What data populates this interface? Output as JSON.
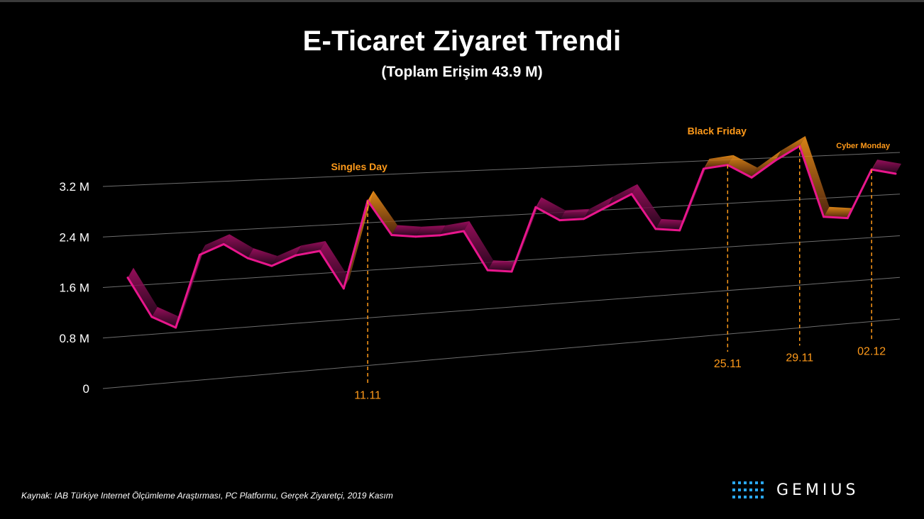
{
  "header": {
    "title": "E-Ticaret Ziyaret Trendi",
    "subtitle": "(Toplam Erişim 43.9 M)"
  },
  "footer": {
    "source": "Kaynak: IAB Türkiye Internet Ölçümleme Araştırması, PC Platformu, Gerçek Ziyaretçi, 2019 Kasım",
    "brand": "GEMIUS"
  },
  "colors": {
    "background": "#000000",
    "series": "#e8168c",
    "highlight": "#ff9a1a",
    "grid": "#8a8a8a"
  },
  "chart_data": {
    "type": "area",
    "title": "E-Ticaret Ziyaret Trendi",
    "subtitle": "(Toplam Erişim 43.9 M)",
    "ylim": [
      0,
      3.2
    ],
    "yticks": [
      "0",
      "0.8 M",
      "1.6 M",
      "2.4 M",
      "3.2 M"
    ],
    "unit": "M",
    "grid": true,
    "series": [
      {
        "values": [
          1.9,
          1.25,
          1.05,
          2.2,
          2.35,
          2.1,
          1.95,
          2.1,
          2.15,
          1.5,
          2.95,
          2.35,
          2.3,
          2.3,
          2.35,
          1.65,
          1.6,
          2.7,
          2.45,
          2.45,
          2.65,
          2.85,
          2.2,
          2.15,
          3.25,
          3.3,
          3.05,
          3.35,
          3.6,
          2.25,
          2.2,
          3.1,
          3.0
        ]
      }
    ],
    "highlights": [
      {
        "index": 10,
        "date": "11.11",
        "label": "Singles Day"
      },
      {
        "index": 25,
        "date": "25.11",
        "label": "Black Friday"
      },
      {
        "index": 28,
        "date": "29.11",
        "label": ""
      },
      {
        "index": 31,
        "date": "02.12",
        "label": "Cyber Monday"
      }
    ]
  }
}
